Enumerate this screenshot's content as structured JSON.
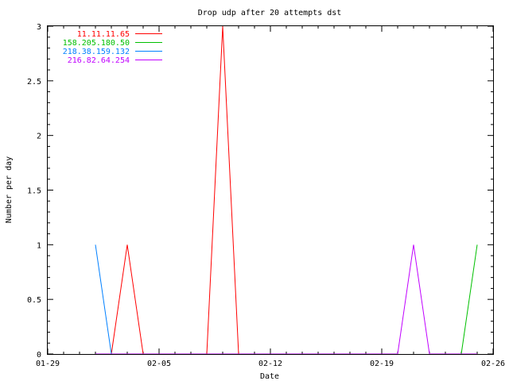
{
  "chart_data": {
    "type": "line",
    "title": "Drop udp after 20 attempts dst",
    "xlabel": "Date",
    "ylabel": "Number per day",
    "xlim": [
      "01-29",
      "02-26"
    ],
    "ylim": [
      0,
      3
    ],
    "x_ticks": [
      "01-29",
      "02-05",
      "02-12",
      "02-19",
      "02-26"
    ],
    "y_ticks": [
      "0",
      "0.5",
      "1",
      "1.5",
      "2",
      "2.5",
      "3"
    ],
    "x_minor_step_days": 1,
    "y_minor_step": 0.1,
    "grid": false,
    "legend_position": "top-left",
    "x": [
      "02-01",
      "02-02",
      "02-03",
      "02-04",
      "02-05",
      "02-06",
      "02-07",
      "02-08",
      "02-09",
      "02-10",
      "02-11",
      "02-12",
      "02-13",
      "02-14",
      "02-15",
      "02-16",
      "02-17",
      "02-18",
      "02-19",
      "02-20",
      "02-21",
      "02-22",
      "02-23",
      "02-24",
      "02-25"
    ],
    "series": [
      {
        "name": "11.11.11.65",
        "color": "#ff0000",
        "values": [
          null,
          0,
          1,
          0,
          null,
          null,
          null,
          0,
          3,
          0,
          null,
          null,
          null,
          null,
          null,
          null,
          null,
          null,
          null,
          null,
          null,
          null,
          null,
          null,
          null
        ]
      },
      {
        "name": "158.205.180.50",
        "color": "#00c000",
        "values": [
          null,
          null,
          null,
          null,
          null,
          null,
          null,
          null,
          null,
          null,
          null,
          null,
          null,
          null,
          null,
          null,
          null,
          null,
          null,
          null,
          null,
          null,
          null,
          0,
          1
        ]
      },
      {
        "name": "218.38.159.132",
        "color": "#0080ff",
        "values": [
          1,
          0,
          null,
          null,
          null,
          null,
          null,
          null,
          null,
          null,
          null,
          null,
          null,
          null,
          null,
          null,
          null,
          null,
          null,
          null,
          null,
          null,
          null,
          null,
          null
        ]
      },
      {
        "name": "216.82.64.254",
        "color": "#c000ff",
        "values": [
          0,
          0,
          0,
          0,
          0,
          0,
          0,
          0,
          0,
          0,
          0,
          0,
          0,
          0,
          0,
          0,
          0,
          0,
          0,
          0,
          1,
          0,
          0,
          0,
          0
        ]
      }
    ]
  }
}
